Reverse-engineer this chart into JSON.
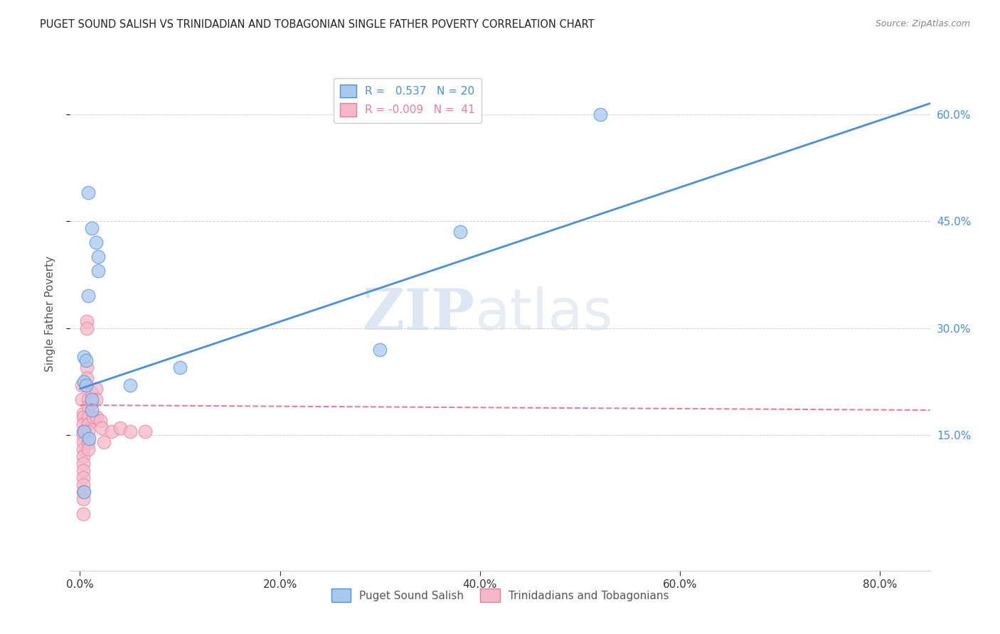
{
  "title": "PUGET SOUND SALISH VS TRINIDADIAN AND TOBAGONIAN SINGLE FATHER POVERTY CORRELATION CHART",
  "source": "Source: ZipAtlas.com",
  "ylabel": "Single Father Poverty",
  "xlabel_ticks": [
    "0.0%",
    "20.0%",
    "40.0%",
    "60.0%",
    "80.0%"
  ],
  "xlabel_tick_vals": [
    0.0,
    0.2,
    0.4,
    0.6,
    0.8
  ],
  "ylabel_ticks": [
    "15.0%",
    "30.0%",
    "45.0%",
    "60.0%"
  ],
  "ylabel_tick_vals": [
    0.15,
    0.3,
    0.45,
    0.6
  ],
  "xlim": [
    -0.01,
    0.85
  ],
  "ylim": [
    -0.04,
    0.68
  ],
  "blue_R": 0.537,
  "blue_N": 20,
  "pink_R": -0.009,
  "pink_N": 41,
  "legend_label_blue": "Puget Sound Salish",
  "legend_label_pink": "Trinidadians and Tobagonians",
  "watermark_zip": "ZIP",
  "watermark_atlas": "atlas",
  "blue_scatter_x": [
    0.008,
    0.012,
    0.016,
    0.018,
    0.018,
    0.008,
    0.004,
    0.006,
    0.004,
    0.006,
    0.012,
    0.1,
    0.012,
    0.004,
    0.05,
    0.38,
    0.52,
    0.3,
    0.009,
    0.004
  ],
  "blue_scatter_y": [
    0.49,
    0.44,
    0.42,
    0.4,
    0.38,
    0.345,
    0.26,
    0.255,
    0.225,
    0.22,
    0.2,
    0.245,
    0.185,
    0.155,
    0.22,
    0.435,
    0.6,
    0.27,
    0.145,
    0.07
  ],
  "pink_scatter_x": [
    0.002,
    0.002,
    0.003,
    0.003,
    0.003,
    0.003,
    0.003,
    0.003,
    0.003,
    0.003,
    0.003,
    0.003,
    0.003,
    0.003,
    0.003,
    0.003,
    0.003,
    0.007,
    0.007,
    0.007,
    0.007,
    0.008,
    0.008,
    0.008,
    0.008,
    0.008,
    0.008,
    0.008,
    0.012,
    0.012,
    0.013,
    0.016,
    0.016,
    0.017,
    0.02,
    0.022,
    0.024,
    0.032,
    0.04,
    0.05,
    0.065
  ],
  "pink_scatter_y": [
    0.22,
    0.2,
    0.18,
    0.175,
    0.165,
    0.155,
    0.15,
    0.14,
    0.13,
    0.12,
    0.11,
    0.1,
    0.09,
    0.08,
    0.07,
    0.06,
    0.04,
    0.31,
    0.3,
    0.245,
    0.23,
    0.2,
    0.19,
    0.175,
    0.165,
    0.155,
    0.14,
    0.13,
    0.21,
    0.195,
    0.175,
    0.215,
    0.2,
    0.175,
    0.17,
    0.16,
    0.14,
    0.155,
    0.16,
    0.155,
    0.155
  ],
  "blue_line_x0": 0.0,
  "blue_line_y0": 0.215,
  "blue_line_x1": 0.85,
  "blue_line_y1": 0.615,
  "pink_line_x0": 0.0,
  "pink_line_y0": 0.192,
  "pink_line_x1": 0.85,
  "pink_line_y1": 0.185,
  "blue_line_color": "#4a90d9",
  "pink_line_color": "#e87d9a",
  "blue_scatter_color": "#a8c8f0",
  "pink_scatter_color": "#f5b8c8",
  "grid_color": "#d0d0d0",
  "background_color": "#ffffff",
  "title_color": "#222222",
  "source_color": "#888888",
  "axis_label_color": "#555555",
  "tick_label_color_right": "#4a90d9",
  "tick_label_color_bottom": "#333333"
}
